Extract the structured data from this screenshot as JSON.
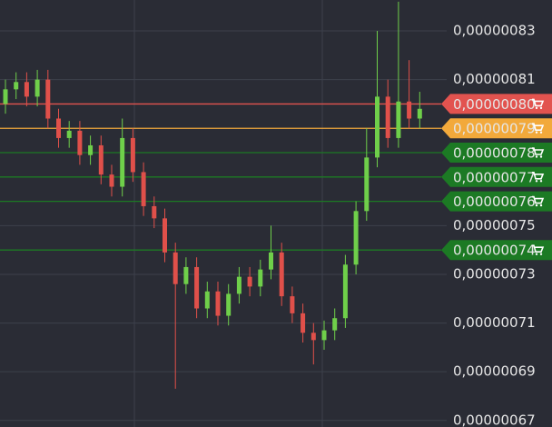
{
  "chart_data": {
    "type": "candlestick",
    "ylim": [
      6.673e-07,
      8.427e-07
    ],
    "yticks": [
      {
        "value": 8.3e-07,
        "label": "0,00000083"
      },
      {
        "value": 8.1e-07,
        "label": "0,00000081"
      },
      {
        "value": 7.5e-07,
        "label": "0,00000075"
      },
      {
        "value": 7.3e-07,
        "label": "0,00000073"
      },
      {
        "value": 7.1e-07,
        "label": "0,00000071"
      },
      {
        "value": 6.9e-07,
        "label": "0,00000069"
      },
      {
        "value": 6.7e-07,
        "label": "0,00000067"
      }
    ],
    "grid": true,
    "up_color": "#6fcf4a",
    "down_color": "#e0504a",
    "price_lines": [
      {
        "value": 8e-07,
        "label": "0,00000080",
        "color": "#e2534f"
      },
      {
        "value": 7.9e-07,
        "label": "0,00000079",
        "color": "#f2a93b"
      },
      {
        "value": 7.8e-07,
        "label": "0,00000078",
        "color": "#1c7a24"
      },
      {
        "value": 7.7e-07,
        "label": "0,00000077",
        "color": "#1c7a24"
      },
      {
        "value": 7.6e-07,
        "label": "0,00000076",
        "color": "#1c7a24"
      },
      {
        "value": 7.4e-07,
        "label": "0,00000074",
        "color": "#1c7a24"
      }
    ],
    "open": [
      8e-07,
      8.06e-07,
      8.09e-07,
      8.03e-07,
      8.1e-07,
      7.94e-07,
      7.86e-07,
      7.89e-07,
      7.79e-07,
      7.83e-07,
      7.71e-07,
      7.66e-07,
      7.86e-07,
      7.72e-07,
      7.58e-07,
      7.53e-07,
      7.39e-07,
      7.26e-07,
      7.33e-07,
      7.16e-07,
      7.23e-07,
      7.13e-07,
      7.22e-07,
      7.29e-07,
      7.25e-07,
      7.32e-07,
      7.39e-07,
      7.21e-07,
      7.14e-07,
      7.06e-07,
      7.03e-07,
      7.07e-07,
      7.12e-07,
      7.34e-07,
      7.56e-07,
      7.78e-07,
      8.03e-07,
      7.86e-07,
      8.01e-07,
      7.94e-07
    ],
    "high": [
      8.1e-07,
      8.13e-07,
      8.13e-07,
      8.14e-07,
      8.14e-07,
      7.98e-07,
      7.93e-07,
      7.93e-07,
      7.87e-07,
      7.87e-07,
      7.75e-07,
      7.94e-07,
      7.9e-07,
      7.76e-07,
      7.62e-07,
      7.57e-07,
      7.43e-07,
      7.37e-07,
      7.37e-07,
      7.27e-07,
      7.27e-07,
      7.26e-07,
      7.33e-07,
      7.33e-07,
      7.36e-07,
      7.5e-07,
      7.43e-07,
      7.25e-07,
      7.18e-07,
      7.1e-07,
      7.11e-07,
      7.16e-07,
      7.38e-07,
      7.6e-07,
      7.9e-07,
      8.3e-07,
      8.1e-07,
      8.42e-07,
      8.18e-07,
      8.05e-07
    ],
    "low": [
      7.96e-07,
      8.02e-07,
      7.99e-07,
      7.99e-07,
      7.9e-07,
      7.82e-07,
      7.82e-07,
      7.75e-07,
      7.75e-07,
      7.67e-07,
      7.62e-07,
      7.62e-07,
      7.68e-07,
      7.54e-07,
      7.49e-07,
      7.35e-07,
      6.83e-07,
      7.22e-07,
      7.12e-07,
      7.12e-07,
      7.09e-07,
      7.09e-07,
      7.18e-07,
      7.21e-07,
      7.21e-07,
      7.28e-07,
      7.17e-07,
      7.1e-07,
      7.02e-07,
      6.93e-07,
      6.99e-07,
      7.03e-07,
      7.08e-07,
      7.3e-07,
      7.52e-07,
      7.74e-07,
      7.82e-07,
      7.82e-07,
      7.9e-07,
      7.9e-07
    ],
    "close": [
      8.06e-07,
      8.09e-07,
      8.03e-07,
      8.1e-07,
      7.94e-07,
      7.86e-07,
      7.89e-07,
      7.79e-07,
      7.83e-07,
      7.71e-07,
      7.66e-07,
      7.86e-07,
      7.72e-07,
      7.58e-07,
      7.53e-07,
      7.39e-07,
      7.26e-07,
      7.33e-07,
      7.16e-07,
      7.23e-07,
      7.13e-07,
      7.22e-07,
      7.29e-07,
      7.25e-07,
      7.32e-07,
      7.39e-07,
      7.21e-07,
      7.14e-07,
      7.06e-07,
      7.03e-07,
      7.07e-07,
      7.12e-07,
      7.34e-07,
      7.56e-07,
      7.78e-07,
      8.03e-07,
      7.86e-07,
      8.01e-07,
      7.94e-07,
      7.98e-07
    ]
  }
}
